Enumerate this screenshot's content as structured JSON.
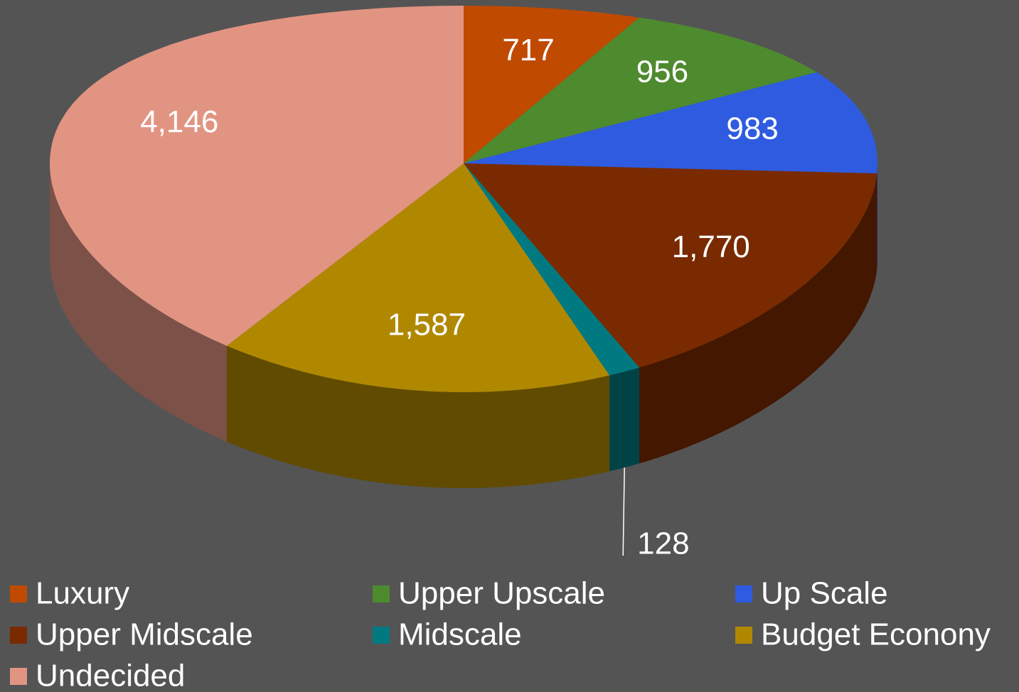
{
  "chart_data": {
    "type": "pie",
    "categories": [
      "Luxury",
      "Upper Upscale",
      "Up Scale",
      "Upper Midscale",
      "Midscale",
      "Budget Econony",
      "Undecided"
    ],
    "values": [
      717,
      956,
      983,
      1770,
      128,
      1587,
      4146
    ],
    "value_labels": [
      "717",
      "956",
      "983",
      "1,770",
      "128",
      "1,587",
      "4,146"
    ],
    "colors": [
      "#c04a00",
      "#4e8a2e",
      "#2e5be0",
      "#7a2a00",
      "#007a80",
      "#b08800",
      "#e29482"
    ],
    "legend": "bottom"
  }
}
